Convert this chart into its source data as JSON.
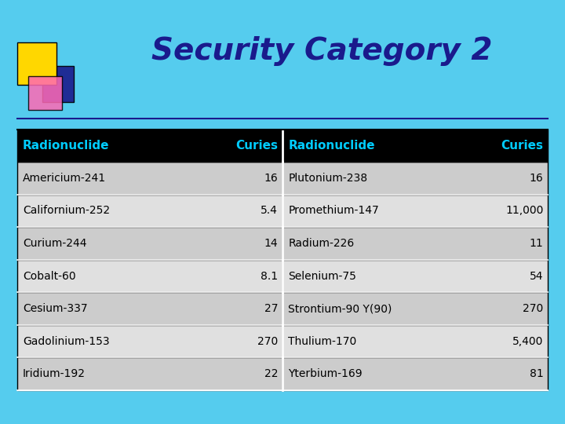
{
  "title": "Security Category 2",
  "title_color": "#1a1a8c",
  "background_color": "#55CCEE",
  "header_bg": "#000000",
  "header_text_color": "#00CCFF",
  "row_odd_color": "#CCCCCC",
  "row_even_color": "#E0E0E0",
  "col1_headers": [
    "Radionuclide",
    "Curies"
  ],
  "col2_headers": [
    "Radionuclide",
    "Curies"
  ],
  "left_data": [
    [
      "Americium-241",
      "16"
    ],
    [
      "Californium-252",
      "5.4"
    ],
    [
      "Curium-244",
      "14"
    ],
    [
      "Cobalt-60",
      "8.1"
    ],
    [
      "Cesium-337",
      "27"
    ],
    [
      "Gadolinium-153",
      "270"
    ],
    [
      "Iridium-192",
      "22"
    ]
  ],
  "right_data": [
    [
      "Plutonium-238",
      "16"
    ],
    [
      "Promethium-147",
      "11,000"
    ],
    [
      "Radium-226",
      "11"
    ],
    [
      "Selenium-75",
      "54"
    ],
    [
      "Strontium-90 Y(90)",
      "270"
    ],
    [
      "Thulium-170",
      "5,400"
    ],
    [
      "Yterbium-169",
      "81"
    ]
  ],
  "logo_yellow": "#FFD700",
  "logo_pink": "#FF69B4",
  "logo_blue": "#1a1a8c"
}
